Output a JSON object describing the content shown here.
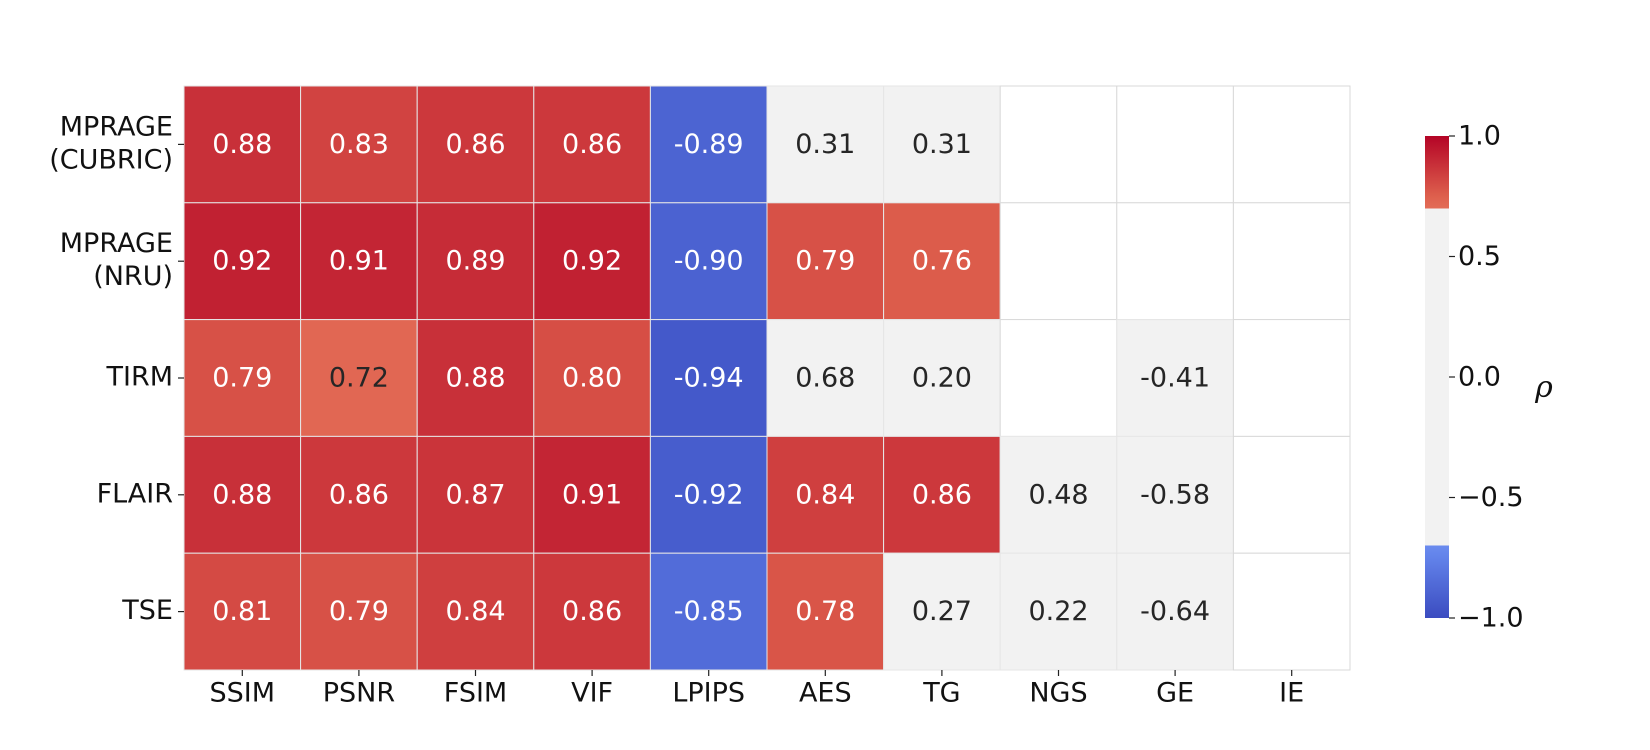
{
  "chart_data": {
    "type": "heatmap",
    "rows": [
      [
        "MPRAGE",
        "(CUBRIC)"
      ],
      [
        "MPRAGE",
        "(NRU)"
      ],
      [
        "TIRM"
      ],
      [
        "FLAIR"
      ],
      [
        "TSE"
      ]
    ],
    "columns": [
      "SSIM",
      "PSNR",
      "FSIM",
      "VIF",
      "LPIPS",
      "AES",
      "TG",
      "NGS",
      "GE",
      "IE"
    ],
    "values": [
      [
        0.88,
        0.83,
        0.86,
        0.86,
        -0.89,
        0.31,
        0.31,
        null,
        null,
        null
      ],
      [
        0.92,
        0.91,
        0.89,
        0.92,
        -0.9,
        0.79,
        0.76,
        null,
        null,
        null
      ],
      [
        0.79,
        0.72,
        0.88,
        0.8,
        -0.94,
        0.68,
        0.2,
        null,
        -0.41,
        null
      ],
      [
        0.88,
        0.86,
        0.87,
        0.91,
        -0.92,
        0.84,
        0.86,
        0.48,
        -0.58,
        null
      ],
      [
        0.81,
        0.79,
        0.84,
        0.86,
        -0.85,
        0.78,
        0.27,
        0.22,
        -0.64,
        null
      ]
    ],
    "value_labels": [
      [
        "0.88",
        "0.83",
        "0.86",
        "0.86",
        "-0.89",
        "0.31",
        "0.31",
        "",
        "",
        ""
      ],
      [
        "0.92",
        "0.91",
        "0.89",
        "0.92",
        "-0.90",
        "0.79",
        "0.76",
        "",
        "",
        ""
      ],
      [
        "0.79",
        "0.72",
        "0.88",
        "0.80",
        "-0.94",
        "0.68",
        "0.20",
        "",
        "-0.41",
        ""
      ],
      [
        "0.88",
        "0.86",
        "0.87",
        "0.91",
        "-0.92",
        "0.84",
        "0.86",
        "0.48",
        "-0.58",
        ""
      ],
      [
        "0.81",
        "0.79",
        "0.84",
        "0.86",
        "-0.85",
        "0.78",
        "0.27",
        "0.22",
        "-0.64",
        ""
      ]
    ],
    "colorbar": {
      "label": "ρ",
      "range": [
        -1.0,
        1.0
      ],
      "ticks": [
        1.0,
        0.5,
        0.0,
        -0.5,
        -1.0
      ],
      "tick_labels": [
        "1.0",
        "0.5",
        "0.0",
        "−0.5",
        "−1.0"
      ],
      "neutral_band": [
        -0.7,
        0.7
      ],
      "neutral_color": "#f2f2f2",
      "colormap": "coolwarm"
    },
    "grid": true
  }
}
